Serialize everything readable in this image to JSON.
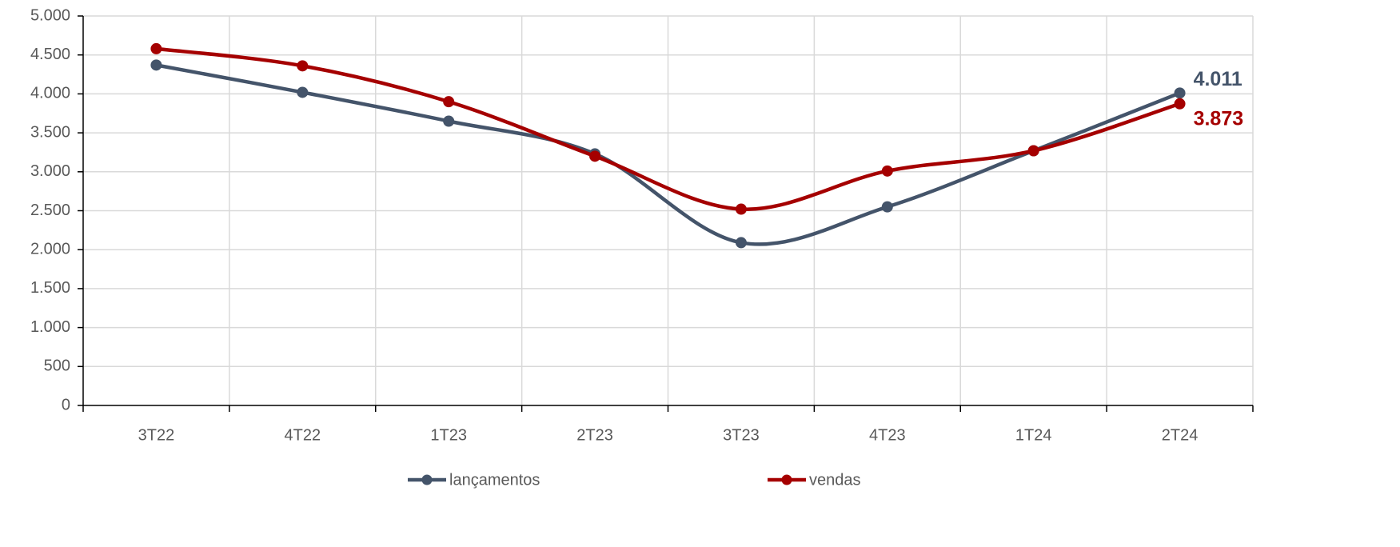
{
  "chart_data": {
    "type": "line",
    "categories": [
      "3T22",
      "4T22",
      "1T23",
      "2T23",
      "3T23",
      "4T23",
      "1T24",
      "2T24"
    ],
    "series": [
      {
        "name": "lançamentos",
        "color": "#44546a",
        "values": [
          4370,
          4020,
          3650,
          3230,
          2090,
          2550,
          3270,
          4011
        ],
        "value_labels": [
          null,
          null,
          null,
          null,
          null,
          null,
          null,
          "4.011"
        ]
      },
      {
        "name": "vendas",
        "color": "#a50000",
        "values": [
          4580,
          4360,
          3900,
          3200,
          2520,
          3010,
          3270,
          3873
        ],
        "value_labels": [
          null,
          null,
          null,
          null,
          null,
          null,
          null,
          "3.873"
        ]
      }
    ],
    "ylim": [
      0,
      5000
    ],
    "yticks": [
      0,
      500,
      {
        "value": 1000,
        "label": "1.000"
      },
      {
        "value": 1500,
        "label": "1.500"
      },
      {
        "value": 2000,
        "label": "2.000"
      },
      {
        "value": 2500,
        "label": "2.500"
      },
      {
        "value": 3000,
        "label": "3.000"
      },
      {
        "value": 3500,
        "label": "3.500"
      },
      {
        "value": 4000,
        "label": "4.000"
      },
      {
        "value": 4500,
        "label": "4.500"
      },
      {
        "value": 5000,
        "label": "5.000"
      }
    ],
    "grid": true,
    "smooth": true,
    "legend": "bottom"
  }
}
